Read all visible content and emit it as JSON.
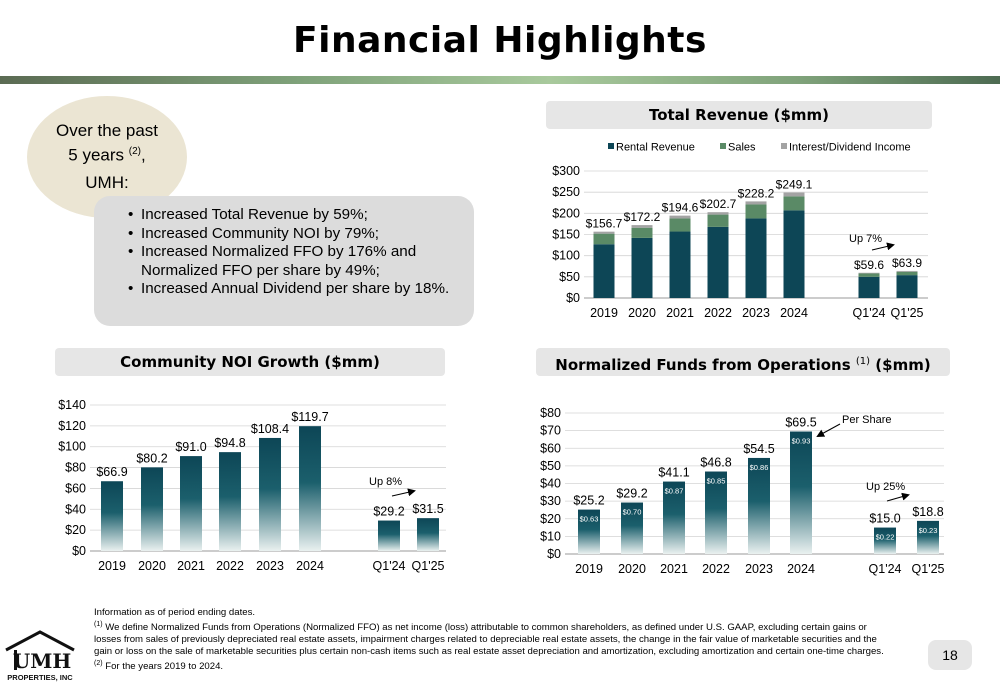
{
  "title": "Financial Highlights",
  "intro": {
    "line1": "Over the past",
    "line2": "5 years",
    "line2_note": "(2)",
    "line2_end": ",",
    "line3": "UMH:"
  },
  "bullets": [
    "Increased Total Revenue by 59%;",
    "Increased Community NOI by 79%;",
    "Increased Normalized FFO by 176% and Normalized FFO per share by 49%;",
    "Increased Annual Dividend per share by 18%."
  ],
  "colors": {
    "navy": "#0d4656",
    "green": "#5a8a66",
    "gray": "#a3a3a3",
    "accent_rule": "#7fa27a"
  },
  "chart_titles": {
    "revenue": "Total Revenue ($mm)",
    "noi": "Community NOI Growth ($mm)",
    "ffo": "Normalized Funds from Operations",
    "ffo_note": "(1)",
    "ffo_end": "($mm)"
  },
  "chart_data": [
    {
      "type": "bar",
      "stacked": true,
      "title": "Total Revenue ($mm)",
      "categories": [
        "2019",
        "2020",
        "2021",
        "2022",
        "2023",
        "2024",
        "Q1'24",
        "Q1'25"
      ],
      "series": [
        {
          "name": "Rental Revenue",
          "color": "#0d4656",
          "values": [
            127,
            142,
            157,
            168,
            188,
            207,
            50,
            54
          ]
        },
        {
          "name": "Sales",
          "color": "#5a8a66",
          "values": [
            25,
            24,
            31,
            29,
            33,
            33,
            8,
            8
          ]
        },
        {
          "name": "Interest/Dividend Income",
          "color": "#a3a3a3",
          "values": [
            4.7,
            6.2,
            6.6,
            5.7,
            7.2,
            9.1,
            1.6,
            1.9
          ]
        }
      ],
      "totals": [
        "$156.7",
        "$172.2",
        "$194.6",
        "$202.7",
        "$228.2",
        "$249.1",
        "$59.6",
        "$63.9"
      ],
      "ylim": [
        0,
        300
      ],
      "yticks": [
        "$0",
        "$50",
        "$100",
        "$150",
        "$200",
        "$250",
        "$300"
      ],
      "legend": "top",
      "annotation": "Up 7%"
    },
    {
      "type": "bar",
      "title": "Community NOI Growth ($mm)",
      "categories": [
        "2019",
        "2020",
        "2021",
        "2022",
        "2023",
        "2024",
        "Q1'24",
        "Q1'25"
      ],
      "values": [
        66.9,
        80.2,
        91.0,
        94.8,
        108.4,
        119.7,
        29.2,
        31.5
      ],
      "labels": [
        "$66.9",
        "$80.2",
        "$91.0",
        "$94.8",
        "$108.4",
        "$119.7",
        "$29.2",
        "$31.5"
      ],
      "ylim": [
        0,
        140
      ],
      "yticks": [
        "$0",
        "$20",
        "$40",
        "$60",
        "$80",
        "$100",
        "$120",
        "$140"
      ],
      "annotation": "Up 8%"
    },
    {
      "type": "bar",
      "title": "Normalized Funds from Operations (1) ($mm)",
      "categories": [
        "2019",
        "2020",
        "2021",
        "2022",
        "2023",
        "2024",
        "Q1'24",
        "Q1'25"
      ],
      "values": [
        25.2,
        29.2,
        41.1,
        46.8,
        54.5,
        69.5,
        15.0,
        18.8
      ],
      "labels": [
        "$25.2",
        "$29.2",
        "$41.1",
        "$46.8",
        "$54.5",
        "$69.5",
        "$15.0",
        "$18.8"
      ],
      "per_share": [
        "$0.63",
        "$0.70",
        "$0.87",
        "$0.85",
        "$0.86",
        "$0.93",
        "$0.22",
        "$0.23"
      ],
      "ylim": [
        0,
        80
      ],
      "yticks": [
        "$0",
        "$10",
        "$20",
        "$30",
        "$40",
        "$50",
        "$60",
        "$70",
        "$80"
      ],
      "annotation": "Up 25%",
      "callout": "Per Share"
    }
  ],
  "footnotes": {
    "line1": "Information as of period ending dates.",
    "note1_marker": "(1)",
    "note1": "We define Normalized Funds from Operations (Normalized FFO) as net income (loss) attributable to common shareholders, as defined under U.S. GAAP, excluding certain gains or losses from sales of previously depreciated real estate assets, impairment charges related to depreciable real estate assets, the change in the fair value of marketable securities and the gain or loss on the sale of marketable securities plus certain non-cash items such as real estate asset depreciation and amortization, excluding amortization and certain one-time charges.",
    "note2_marker": "(2)",
    "note2": "For the years 2019 to 2024."
  },
  "page_number": "18",
  "logo": {
    "name": "UMH",
    "sub": "PROPERTIES, INC"
  }
}
